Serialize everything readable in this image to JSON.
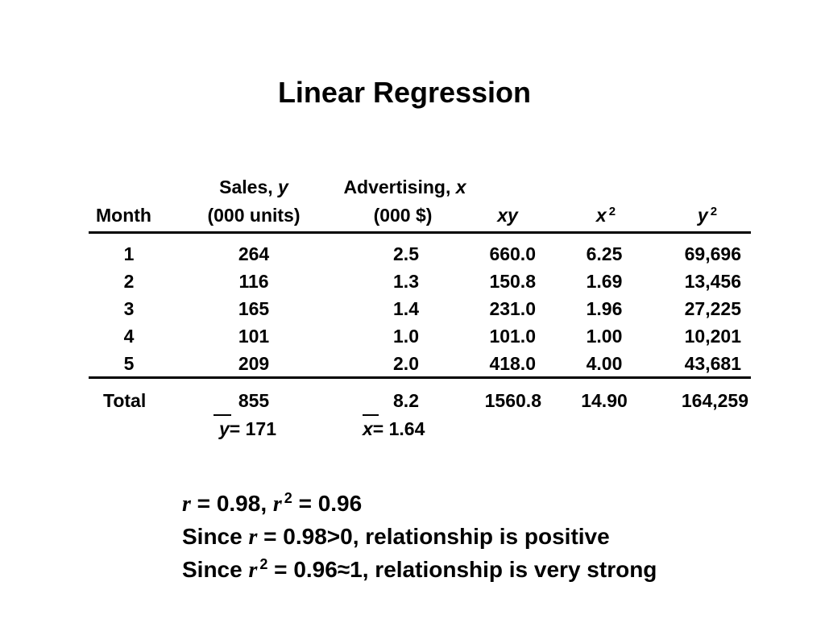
{
  "title": "Linear Regression",
  "columns": {
    "month": {
      "line2": "Month"
    },
    "sales": {
      "line1": "Sales,",
      "var": "y",
      "line2": "(000 units)"
    },
    "advertising": {
      "line1": "Advertising,",
      "var": "x",
      "line2": "(000 $)"
    },
    "xy": {
      "label": "xy"
    },
    "x2": {
      "base": "x",
      "exp": "2"
    },
    "y2": {
      "base": "y",
      "exp": "2"
    }
  },
  "rows": [
    {
      "month": "1",
      "sales": "264",
      "advertising": "2.5",
      "xy": "660.0",
      "x2": "6.25",
      "y2": "69,696"
    },
    {
      "month": "2",
      "sales": "116",
      "advertising": "1.3",
      "xy": "150.8",
      "x2": "1.69",
      "y2": "13,456"
    },
    {
      "month": "3",
      "sales": "165",
      "advertising": "1.4",
      "xy": "231.0",
      "x2": "1.96",
      "y2": "27,225"
    },
    {
      "month": "4",
      "sales": "101",
      "advertising": "1.0",
      "xy": "101.0",
      "x2": "1.00",
      "y2": "10,201"
    },
    {
      "month": "5",
      "sales": "209",
      "advertising": "2.0",
      "xy": "418.0",
      "x2": "4.00",
      "y2": "43,681"
    }
  ],
  "totals": {
    "label": "Total",
    "sales": "855",
    "advertising": "8.2",
    "xy": "1560.8",
    "x2": "14.90",
    "y2": "164,259"
  },
  "means": {
    "y": {
      "var": "y",
      "value": "= 171"
    },
    "x": {
      "var": "x",
      "value": "= 1.64"
    }
  },
  "statements": {
    "line1": {
      "r": "r",
      "eq1": " = 0.98, ",
      "r2": "r",
      "exp": "2",
      "eq2": " = 0.96"
    },
    "line2": {
      "prefix": "Since ",
      "r": "r",
      "rest": " = 0.98>0, relationship is positive"
    },
    "line3": {
      "prefix": "Since  ",
      "r": "r",
      "exp": "2",
      "rest": " = 0.96≈1, relationship is very strong"
    }
  }
}
